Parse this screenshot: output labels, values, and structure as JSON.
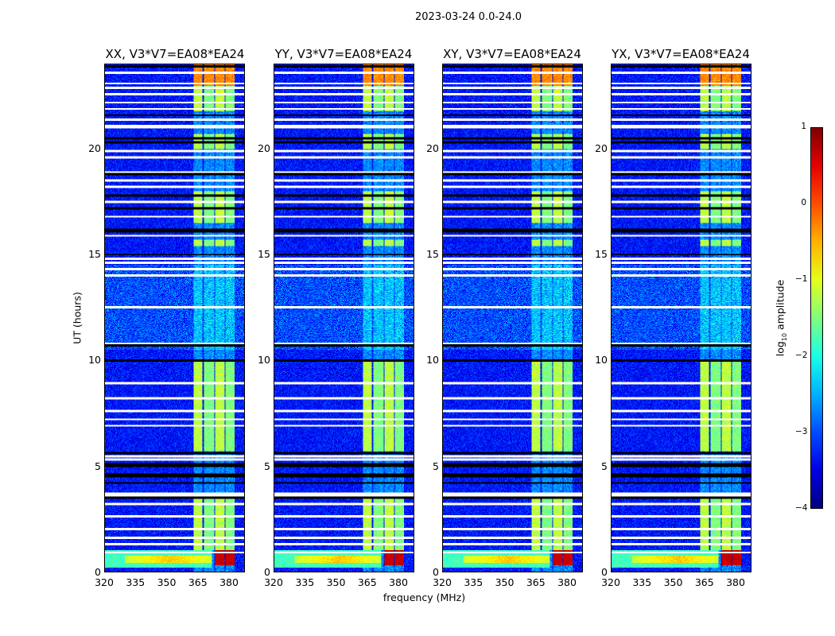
{
  "chart_data": {
    "type": "heatmap",
    "title": "2023-03-24 0.0-24.0",
    "xlabel": "frequency (MHz)",
    "ylabel": "UT (hours)",
    "xlim": [
      320,
      388
    ],
    "ylim": [
      0,
      24
    ],
    "x_ticks": [
      "320",
      "335",
      "350",
      "365",
      "380"
    ],
    "y_ticks": [
      "0",
      "5",
      "10",
      "15",
      "20"
    ],
    "panels": [
      {
        "title": "XX, V3*V7=EA08*EA24"
      },
      {
        "title": "YY, V3*V7=EA08*EA24"
      },
      {
        "title": "XY, V3*V7=EA08*EA24"
      },
      {
        "title": "YX, V3*V7=EA08*EA24"
      }
    ],
    "colorbar": {
      "label_prefix": "log",
      "label_sub": "10",
      "label_suffix": " amplitude",
      "range": [
        -4,
        1
      ],
      "ticks": [
        "1",
        "0",
        "−1",
        "−2",
        "−3",
        "−4"
      ],
      "colormap": "jet"
    },
    "background_log_amplitude": -3.3,
    "subbands_mhz": [
      [
        363,
        367.5
      ],
      [
        368,
        373
      ],
      [
        373.4,
        378
      ],
      [
        378.6,
        383
      ]
    ],
    "bright_time_ranges_hours": [
      [
        1.0,
        3.5
      ],
      [
        5.7,
        10.0
      ],
      [
        15.4,
        15.7
      ],
      [
        16.5,
        18.0
      ],
      [
        20.0,
        20.7
      ],
      [
        21.8,
        24.0
      ]
    ],
    "bright_log_amplitude": -1.2,
    "top_hour_log_amplitude": -0.3,
    "low_hour_strong": {
      "hours": [
        0.3,
        1.0
      ],
      "log_amplitude": 0.5
    },
    "flagged_white_hours": [
      0.9,
      1.3,
      1.6,
      2.0,
      2.6,
      3.2,
      3.6,
      3.7,
      5.3,
      5.45,
      6.9,
      7.2,
      7.6,
      8.2,
      8.9,
      10.8,
      12.5,
      14.0,
      14.3,
      14.6,
      14.8,
      15.9,
      16.8,
      17.5,
      18.2,
      18.5,
      18.9,
      19.6,
      19.9,
      21.0,
      21.1,
      21.4,
      21.9,
      22.2,
      22.6,
      22.9,
      23.1,
      23.6
    ],
    "flagged_black_hours": [
      3.5,
      4.2,
      4.5,
      4.6,
      5.0,
      5.1,
      5.6,
      10.0,
      10.7,
      15.0,
      16.1,
      16.2,
      17.2,
      17.8,
      18.8,
      20.3,
      20.5,
      21.6,
      23.9
    ]
  }
}
